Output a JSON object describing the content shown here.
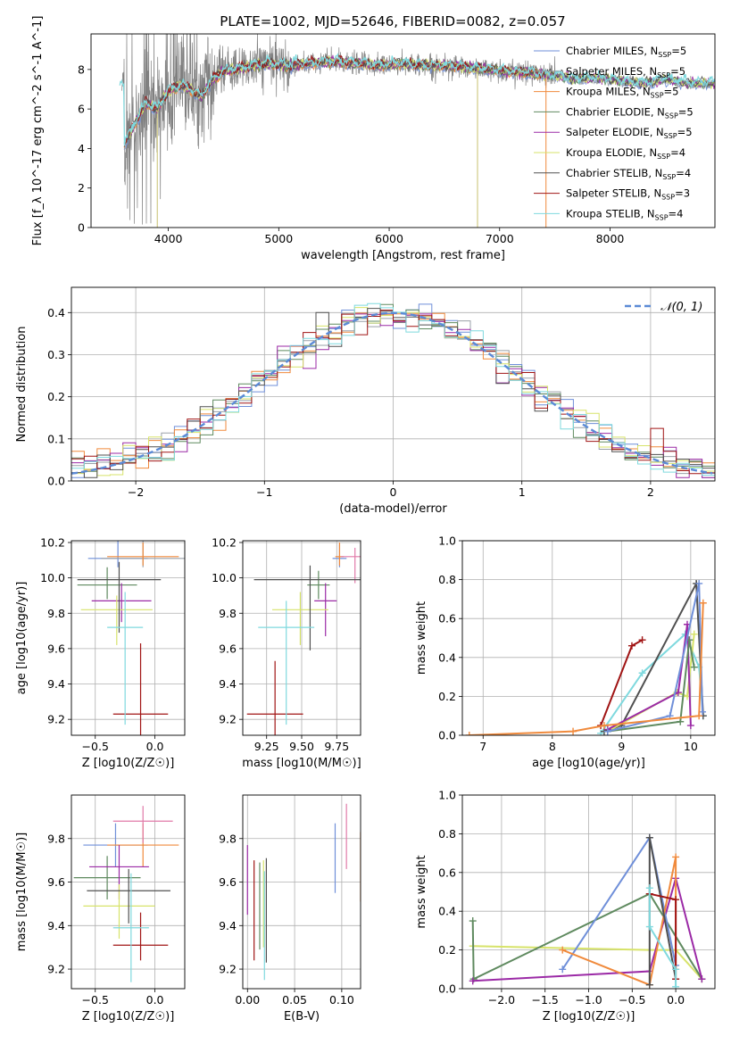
{
  "title": "PLATE=1002, MJD=52646, FIBERID=0082, z=0.057",
  "colors": {
    "Chabrier MILES": "#6f8fd9",
    "Salpeter MILES": "#9aa0a8",
    "Kroupa MILES": "#f08a3c",
    "Chabrier ELODIE": "#5f8a5f",
    "Salpeter ELODIE": "#9b2aa6",
    "Kroupa ELODIE": "#d7e36a",
    "Chabrier STELIB": "#505050",
    "Salpeter STELIB": "#a01414",
    "Kroupa STELIB": "#7fd9de",
    "pink": "#e07aa8",
    "data": "#808080"
  },
  "chart_data": [
    {
      "id": "spectrum",
      "type": "line",
      "title": "PLATE=1002, MJD=52646, FIBERID=0082, z=0.057",
      "xlabel": "wavelength [Angstrom, rest frame]",
      "ylabel": "Flux [f_λ 10^-17 erg cm^-2 s^-1 A^-1]",
      "xlim": [
        3300,
        8950
      ],
      "ylim": [
        0,
        9.8
      ],
      "xticks": [
        4000,
        5000,
        6000,
        7000,
        8000
      ],
      "yticks": [
        0,
        2,
        4,
        6,
        8
      ],
      "legend_position": "top-right",
      "legend": [
        {
          "base": "Chabrier MILES, N",
          "sub": "SSP",
          "tail": "=5",
          "color": "#6f8fd9"
        },
        {
          "base": "Salpeter MILES, N",
          "sub": "SSP",
          "tail": "=5",
          "color": "#9aa0a8"
        },
        {
          "base": "Kroupa MILES, N",
          "sub": "SSP",
          "tail": "=5",
          "color": "#f08a3c"
        },
        {
          "base": "Chabrier ELODIE, N",
          "sub": "SSP",
          "tail": "=5",
          "color": "#5f8a5f"
        },
        {
          "base": "Salpeter ELODIE, N",
          "sub": "SSP",
          "tail": "=5",
          "color": "#9b2aa6"
        },
        {
          "base": "Kroupa ELODIE, N",
          "sub": "SSP",
          "tail": "=4",
          "color": "#d7e36a"
        },
        {
          "base": "Chabrier STELIB, N",
          "sub": "SSP",
          "tail": "=4",
          "color": "#505050"
        },
        {
          "base": "Salpeter STELIB, N",
          "sub": "SSP",
          "tail": "=3",
          "color": "#a01414"
        },
        {
          "base": "Kroupa STELIB, N",
          "sub": "SSP",
          "tail": "=4",
          "color": "#7fd9de"
        }
      ],
      "continuum": [
        [
          3600,
          4.2
        ],
        [
          3700,
          5.3
        ],
        [
          3800,
          6.3
        ],
        [
          3900,
          6.0
        ],
        [
          4000,
          6.9
        ],
        [
          4100,
          7.2
        ],
        [
          4200,
          7.0
        ],
        [
          4300,
          6.6
        ],
        [
          4400,
          7.5
        ],
        [
          4500,
          7.9
        ],
        [
          4700,
          8.1
        ],
        [
          4900,
          8.3
        ],
        [
          5100,
          8.2
        ],
        [
          5300,
          8.3
        ],
        [
          5500,
          8.4
        ],
        [
          5700,
          8.3
        ],
        [
          5900,
          8.2
        ],
        [
          6100,
          8.3
        ],
        [
          6300,
          8.2
        ],
        [
          6500,
          8.2
        ],
        [
          6700,
          8.1
        ],
        [
          6900,
          8.0
        ],
        [
          7100,
          7.9
        ],
        [
          7300,
          7.8
        ],
        [
          7500,
          7.7
        ],
        [
          7700,
          7.5
        ],
        [
          7900,
          7.6
        ],
        [
          8100,
          7.4
        ],
        [
          8300,
          7.3
        ],
        [
          8500,
          7.5
        ],
        [
          8700,
          7.3
        ],
        [
          8900,
          7.3
        ]
      ]
    },
    {
      "id": "residuals",
      "type": "line",
      "xlabel": "(data-model)/error",
      "ylabel": "Normed distribution",
      "xlim": [
        -2.5,
        2.5
      ],
      "ylim": [
        0,
        0.46
      ],
      "xticks": [
        -2,
        -1,
        0,
        1,
        2
      ],
      "yticks": [
        0.0,
        0.1,
        0.2,
        0.3,
        0.4
      ],
      "grid": true,
      "legend_position": "top-right",
      "legend": [
        {
          "label": "𝒩(0, 1)",
          "color": "#5b8ad6",
          "style": "dashed"
        }
      ]
    },
    {
      "id": "age-vs-Z",
      "type": "scatter",
      "xlabel": "Z [log10(Z/Z☉)]",
      "ylabel": "age [log10(age/yr)]",
      "xlim": [
        -0.7,
        0.25
      ],
      "ylim": [
        9.11,
        10.21
      ],
      "xticks": [
        -0.5,
        0.0
      ],
      "yticks": [
        9.2,
        9.4,
        9.6,
        9.8,
        10.0,
        10.2
      ],
      "grid": true,
      "points": [
        {
          "color": "#6f8fd9",
          "x": -0.31,
          "y": 10.11,
          "xerr": [
            0.25,
            0.25
          ],
          "yerr": [
            0.05,
            0.1
          ]
        },
        {
          "color": "#9aa0a8",
          "x": -0.1,
          "y": 10.11,
          "xerr": [
            0.35,
            0.35
          ],
          "yerr": [
            0.05,
            0.1
          ]
        },
        {
          "color": "#f08a3c",
          "x": -0.1,
          "y": 10.12,
          "xerr": [
            0.3,
            0.3
          ],
          "yerr": [
            0.05,
            0.08
          ]
        },
        {
          "color": "#5f8a5f",
          "x": -0.4,
          "y": 9.96,
          "xerr": [
            0.25,
            0.25
          ],
          "yerr": [
            0.08,
            0.1
          ]
        },
        {
          "color": "#9b2aa6",
          "x": -0.28,
          "y": 9.87,
          "xerr": [
            0.25,
            0.25
          ],
          "yerr": [
            0.12,
            0.1
          ]
        },
        {
          "color": "#d7e36a",
          "x": -0.32,
          "y": 9.82,
          "xerr": [
            0.3,
            0.3
          ],
          "yerr": [
            0.2,
            0.08
          ]
        },
        {
          "color": "#505050",
          "x": -0.3,
          "y": 9.99,
          "xerr": [
            0.35,
            0.35
          ],
          "yerr": [
            0.3,
            0.1
          ]
        },
        {
          "color": "#a01414",
          "x": -0.12,
          "y": 9.23,
          "xerr": [
            0.23,
            0.23
          ],
          "yerr": [
            0.4,
            0.4
          ]
        },
        {
          "color": "#7fd9de",
          "x": -0.25,
          "y": 9.72,
          "xerr": [
            0.15,
            0.15
          ],
          "yerr": [
            0.55,
            0.2
          ]
        }
      ]
    },
    {
      "id": "age-vs-mass",
      "type": "scatter",
      "xlabel": "mass [log10(M/M☉)]",
      "xlim": [
        9.08,
        9.92
      ],
      "ylim": [
        9.11,
        10.21
      ],
      "xticks": [
        9.25,
        9.5,
        9.75
      ],
      "yticks": [
        9.2,
        9.4,
        9.6,
        9.8,
        10.0,
        10.2
      ],
      "grid": true,
      "points": [
        {
          "color": "#6f8fd9",
          "x": 9.77,
          "y": 10.11,
          "xerr": [
            0.05,
            0.05
          ],
          "yerr": [
            0.05,
            0.08
          ]
        },
        {
          "color": "#f08a3c",
          "x": 9.77,
          "y": 10.12,
          "xerr": [
            0.03,
            0.03
          ],
          "yerr": [
            0.05,
            0.08
          ]
        },
        {
          "color": "#e07aa8",
          "x": 9.88,
          "y": 10.12,
          "xerr": [
            0.1,
            0.1
          ],
          "yerr": [
            0.15,
            0.05
          ]
        },
        {
          "color": "#5f8a5f",
          "x": 9.62,
          "y": 9.96,
          "xerr": [
            0.08,
            0.08
          ],
          "yerr": [
            0.08,
            0.08
          ]
        },
        {
          "color": "#9b2aa6",
          "x": 9.67,
          "y": 9.87,
          "xerr": [
            0.08,
            0.08
          ],
          "yerr": [
            0.2,
            0.1
          ]
        },
        {
          "color": "#d7e36a",
          "x": 9.49,
          "y": 9.82,
          "xerr": [
            0.2,
            0.2
          ],
          "yerr": [
            0.2,
            0.1
          ]
        },
        {
          "color": "#505050",
          "x": 9.56,
          "y": 9.99,
          "xerr": [
            0.4,
            0.4
          ],
          "yerr": [
            0.4,
            0.08
          ]
        },
        {
          "color": "#a01414",
          "x": 9.31,
          "y": 9.23,
          "xerr": [
            0.2,
            0.2
          ],
          "yerr": [
            0.3,
            0.3
          ]
        },
        {
          "color": "#7fd9de",
          "x": 9.39,
          "y": 9.72,
          "xerr": [
            0.2,
            0.2
          ],
          "yerr": [
            0.55,
            0.15
          ]
        }
      ]
    },
    {
      "id": "mass-weight-vs-age",
      "type": "line",
      "xlabel": "age [log10(age/yr)]",
      "ylabel": "mass weight",
      "xlim": [
        6.7,
        10.35
      ],
      "ylim": [
        0,
        1.0
      ],
      "xticks": [
        7,
        8,
        9,
        10
      ],
      "yticks": [
        0.0,
        0.2,
        0.4,
        0.6,
        0.8,
        1.0
      ],
      "grid": true,
      "series": [
        {
          "color": "#7fd9de",
          "x": [
            8.7,
            9.3,
            9.92,
            10.12,
            10.18
          ],
          "y": [
            0.01,
            0.32,
            0.52,
            0.35,
            0.1
          ]
        },
        {
          "color": "#a01414",
          "x": [
            8.7,
            9.15,
            9.3
          ],
          "y": [
            0.05,
            0.46,
            0.49
          ]
        },
        {
          "color": "#505050",
          "x": [
            8.75,
            9.0,
            10.08,
            10.18
          ],
          "y": [
            0.02,
            0.05,
            0.78,
            0.1
          ]
        },
        {
          "color": "#d7e36a",
          "x": [
            8.8,
            9.8,
            9.95,
            10.05
          ],
          "y": [
            0.02,
            0.22,
            0.2,
            0.52
          ]
        },
        {
          "color": "#9b2aa6",
          "x": [
            8.8,
            9.82,
            9.95,
            10.0
          ],
          "y": [
            0.03,
            0.22,
            0.57,
            0.05
          ]
        },
        {
          "color": "#5f8a5f",
          "x": [
            8.8,
            9.85,
            9.98,
            10.05
          ],
          "y": [
            0.02,
            0.07,
            0.49,
            0.35
          ]
        },
        {
          "color": "#6f8fd9",
          "x": [
            8.8,
            9.7,
            10.12,
            10.17
          ],
          "y": [
            0.02,
            0.1,
            0.78,
            0.12
          ]
        },
        {
          "color": "#f08a3c",
          "x": [
            6.8,
            8.3,
            8.75,
            10.12,
            10.18
          ],
          "y": [
            0.0,
            0.02,
            0.05,
            0.1,
            0.68
          ]
        }
      ]
    },
    {
      "id": "mass-vs-Z",
      "type": "scatter",
      "xlabel": "Z [log10(Z/Z☉)]",
      "ylabel": "mass [log10(M/M☉)]",
      "xlim": [
        -0.7,
        0.25
      ],
      "ylim": [
        9.11,
        10.0
      ],
      "xticks": [
        -0.5,
        0.0
      ],
      "yticks": [
        9.2,
        9.4,
        9.6,
        9.8
      ],
      "grid": true,
      "points": [
        {
          "color": "#6f8fd9",
          "x": -0.33,
          "y": 9.77,
          "xerr": [
            0.27,
            0.27
          ],
          "yerr": [
            0.1,
            0.1
          ]
        },
        {
          "color": "#f08a3c",
          "x": -0.1,
          "y": 9.77,
          "xerr": [
            0.3,
            0.3
          ],
          "yerr": [
            0.1,
            0.1
          ]
        },
        {
          "color": "#e07aa8",
          "x": -0.1,
          "y": 9.88,
          "xerr": [
            0.25,
            0.25
          ],
          "yerr": [
            0.1,
            0.07
          ]
        },
        {
          "color": "#5f8a5f",
          "x": -0.4,
          "y": 9.62,
          "xerr": [
            0.28,
            0.28
          ],
          "yerr": [
            0.1,
            0.1
          ]
        },
        {
          "color": "#9b2aa6",
          "x": -0.3,
          "y": 9.67,
          "xerr": [
            0.25,
            0.25
          ],
          "yerr": [
            0.15,
            0.1
          ]
        },
        {
          "color": "#d7e36a",
          "x": -0.3,
          "y": 9.49,
          "xerr": [
            0.3,
            0.3
          ],
          "yerr": [
            0.15,
            0.1
          ]
        },
        {
          "color": "#505050",
          "x": -0.22,
          "y": 9.56,
          "xerr": [
            0.35,
            0.35
          ],
          "yerr": [
            0.15,
            0.1
          ]
        },
        {
          "color": "#a01414",
          "x": -0.12,
          "y": 9.31,
          "xerr": [
            0.23,
            0.23
          ],
          "yerr": [
            0.07,
            0.15
          ]
        },
        {
          "color": "#7fd9de",
          "x": -0.2,
          "y": 9.39,
          "xerr": [
            0.15,
            0.15
          ],
          "yerr": [
            0.25,
            0.25
          ]
        }
      ]
    },
    {
      "id": "mass-vs-ebv",
      "type": "scatter",
      "xlabel": "E(B-V)",
      "xlim": [
        -0.005,
        0.12
      ],
      "ylim": [
        9.11,
        10.0
      ],
      "xticks": [
        0.0,
        0.05,
        0.1
      ],
      "yticks": [
        9.2,
        9.4,
        9.6,
        9.8
      ],
      "grid": true,
      "points": [
        {
          "color": "#9b2aa6",
          "x": 0.0,
          "y": 9.61,
          "yerr": [
            0.16,
            0.16
          ]
        },
        {
          "color": "#a01414",
          "x": 0.007,
          "y": 9.47,
          "yerr": [
            0.23,
            0.23
          ]
        },
        {
          "color": "#5f8a5f",
          "x": 0.013,
          "y": 9.49,
          "yerr": [
            0.2,
            0.2
          ]
        },
        {
          "color": "#d7e36a",
          "x": 0.017,
          "y": 9.5,
          "yerr": [
            0.2,
            0.2
          ]
        },
        {
          "color": "#505050",
          "x": 0.02,
          "y": 9.47,
          "yerr": [
            0.24,
            0.24
          ]
        },
        {
          "color": "#7fd9de",
          "x": 0.018,
          "y": 9.4,
          "yerr": [
            0.25,
            0.25
          ]
        },
        {
          "color": "#6f8fd9",
          "x": 0.093,
          "y": 9.71,
          "yerr": [
            0.16,
            0.16
          ]
        },
        {
          "color": "#e07aa8",
          "x": 0.105,
          "y": 9.81,
          "yerr": [
            0.15,
            0.15
          ]
        },
        {
          "color": "#f08a3c",
          "x": 0.12,
          "y": 9.67,
          "yerr": [
            0.16,
            0.16
          ]
        }
      ]
    },
    {
      "id": "mass-weight-vs-Z",
      "type": "line",
      "xlabel": "Z [log10(Z/Z☉)]",
      "ylabel": "mass weight",
      "xlim": [
        -2.45,
        0.45
      ],
      "ylim": [
        0,
        1.0
      ],
      "xticks": [
        -2.0,
        -1.5,
        -1.0,
        -0.5,
        0.0
      ],
      "yticks": [
        0.0,
        0.2,
        0.4,
        0.6,
        0.8,
        1.0
      ],
      "grid": true,
      "series": [
        {
          "color": "#d7e36a",
          "x": [
            -2.33,
            -0.3,
            0.0,
            0.3
          ],
          "y": [
            0.22,
            0.2,
            0.2,
            0.05
          ]
        },
        {
          "color": "#5f8a5f",
          "x": [
            -2.33,
            -2.32,
            -0.3,
            0.3
          ],
          "y": [
            0.35,
            0.05,
            0.49,
            0.05
          ]
        },
        {
          "color": "#9b2aa6",
          "x": [
            -2.33,
            -0.3,
            0.0,
            0.3
          ],
          "y": [
            0.04,
            0.09,
            0.57,
            0.05
          ]
        },
        {
          "color": "#6f8fd9",
          "x": [
            -1.3,
            -0.3,
            0.0
          ],
          "y": [
            0.1,
            0.78,
            0.12
          ]
        },
        {
          "color": "#f08a3c",
          "x": [
            -1.3,
            -0.3,
            0.0,
            0.0
          ],
          "y": [
            0.2,
            0.02,
            0.68,
            0.1
          ]
        },
        {
          "color": "#505050",
          "x": [
            -0.3,
            -0.3,
            0.0
          ],
          "y": [
            0.02,
            0.78,
            0.05
          ]
        },
        {
          "color": "#a01414",
          "x": [
            -0.3,
            0.0,
            0.0
          ],
          "y": [
            0.49,
            0.46,
            0.05
          ]
        },
        {
          "color": "#7fd9de",
          "x": [
            -0.3,
            -0.3,
            0.0,
            0.0
          ],
          "y": [
            0.52,
            0.32,
            0.1,
            0.01
          ]
        }
      ]
    }
  ]
}
